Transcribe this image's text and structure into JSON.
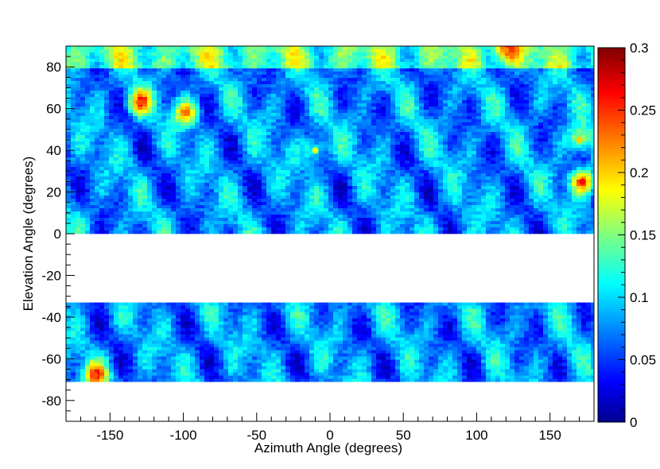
{
  "chart_data": {
    "type": "heatmap",
    "title": "",
    "xlabel": "Azimuth Angle (degrees)",
    "ylabel": "Elevation Angle (degrees)",
    "xlim": [
      -180,
      180
    ],
    "ylim": [
      -90,
      90
    ],
    "x_ticks": [
      "-150",
      "-100",
      "-50",
      "0",
      "50",
      "100",
      "150"
    ],
    "x_tick_values": [
      -150,
      -100,
      -50,
      0,
      50,
      100,
      150
    ],
    "y_ticks": [
      "80",
      "60",
      "40",
      "20",
      "0",
      "-20",
      "-40",
      "-60",
      "-80"
    ],
    "y_tick_values": [
      80,
      60,
      40,
      20,
      0,
      -20,
      -40,
      -60,
      -80
    ],
    "colorbar": {
      "range": [
        0,
        0.3
      ],
      "ticks": [
        "0",
        "0.05",
        "0.1",
        "0.15",
        "0.2",
        "0.25",
        "0.3"
      ],
      "tick_values": [
        0,
        0.05,
        0.1,
        0.15,
        0.2,
        0.25,
        0.3
      ],
      "colormap": "jet"
    },
    "data_bands": [
      {
        "name": "upper",
        "elevation_range": [
          0,
          90
        ]
      },
      {
        "name": "lower",
        "elevation_range": [
          -71,
          -33
        ]
      }
    ],
    "hotspots": [
      {
        "azimuth": 172,
        "elevation": 25,
        "value": 0.26
      },
      {
        "azimuth": -160,
        "elevation": -68,
        "value": 0.24
      },
      {
        "azimuth": -130,
        "elevation": 63,
        "value": 0.24
      },
      {
        "azimuth": -98,
        "elevation": 58,
        "value": 0.23
      },
      {
        "azimuth": 120,
        "elevation": 88,
        "value": 0.22
      },
      {
        "azimuth": 170,
        "elevation": 45,
        "value": 0.2
      },
      {
        "azimuth": -10,
        "elevation": 40,
        "value": 0.18
      }
    ],
    "grid": false
  }
}
